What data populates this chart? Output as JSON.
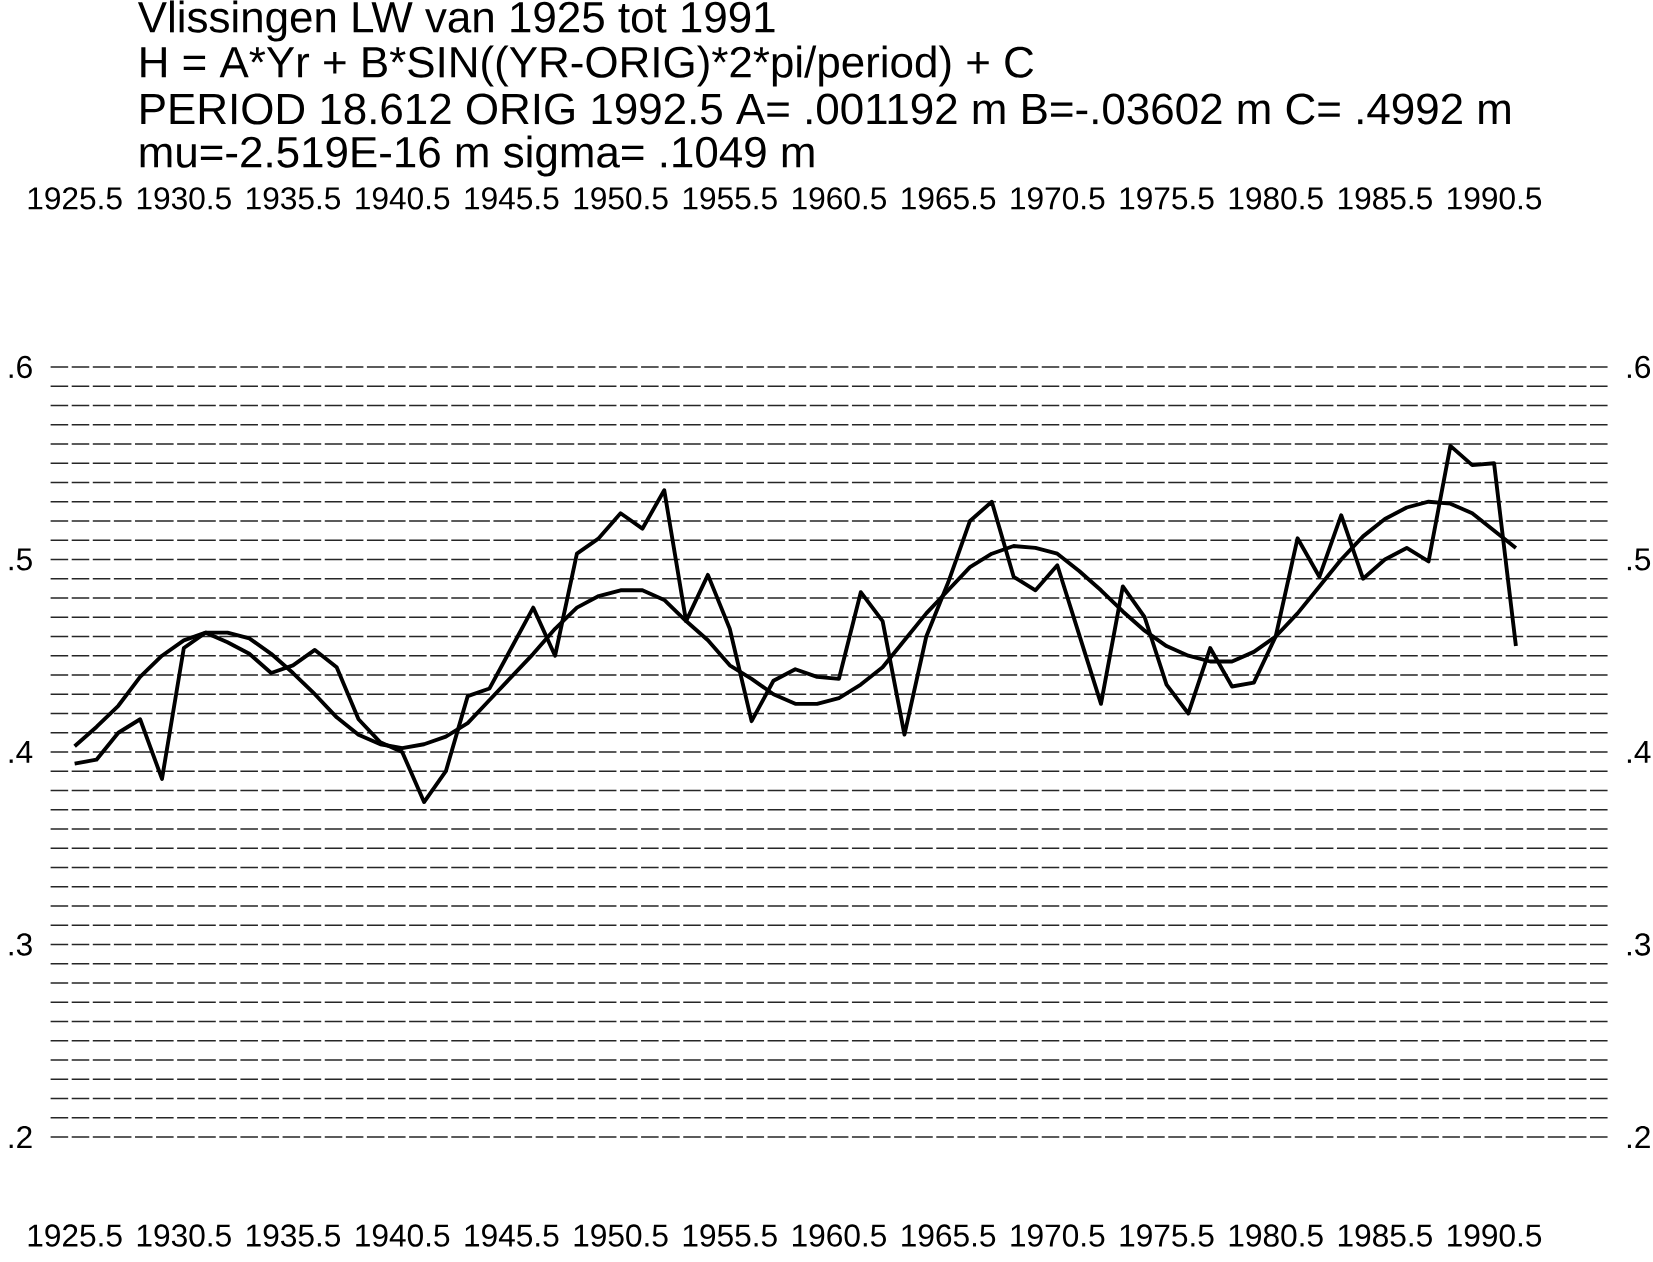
{
  "chart_data": {
    "type": "line",
    "title": "Vlissingen LW van 1925 tot 1991",
    "subtitle": "H = A*Yr + B*SIN((YR-ORIG)*2*pi/period) + C",
    "annotations": [
      "PERIOD 18.612 ORIG 1992.5 A= .001192 m B=-.03602 m C= .4992 m",
      "mu=-2.519E-16 m sigma= .1049 m"
    ],
    "series": [
      {
        "color": "#000000",
        "x": [
          1925.5,
          1926.5,
          1927.5,
          1928.5,
          1929.5,
          1930.5,
          1931.5,
          1932.5,
          1933.5,
          1934.5,
          1935.5,
          1936.5,
          1937.5,
          1938.5,
          1939.5,
          1940.5,
          1941.5,
          1942.5,
          1943.5,
          1944.5,
          1945.5,
          1946.5,
          1947.5,
          1948.5,
          1949.5,
          1950.5,
          1951.5,
          1952.5,
          1953.5,
          1954.5,
          1955.5,
          1956.5,
          1957.5,
          1958.5,
          1959.5,
          1960.5,
          1961.5,
          1962.5,
          1963.5,
          1964.5,
          1965.5,
          1966.5,
          1967.5,
          1968.5,
          1969.5,
          1970.5,
          1971.5,
          1972.5,
          1973.5,
          1974.5,
          1975.5,
          1976.5,
          1977.5,
          1978.5,
          1979.5,
          1980.5,
          1981.5,
          1982.5,
          1983.5,
          1984.5,
          1985.5,
          1986.5,
          1987.5,
          1988.5,
          1989.5,
          1990.5,
          1991.5
        ],
        "values": [
          0.394,
          0.396,
          0.41,
          0.417,
          0.386,
          0.454,
          0.462,
          0.457,
          0.451,
          0.441,
          0.445,
          0.453,
          0.444,
          0.417,
          0.405,
          0.4,
          0.374,
          0.39,
          0.429,
          0.433,
          0.454,
          0.475,
          0.45,
          0.503,
          0.511,
          0.524,
          0.516,
          0.536,
          0.468,
          0.492,
          0.464,
          0.416,
          0.437,
          0.443,
          0.439,
          0.438,
          0.483,
          0.468,
          0.409,
          0.46,
          0.488,
          0.52,
          0.53,
          0.491,
          0.484,
          0.497,
          0.461,
          0.425,
          0.486,
          0.47,
          0.435,
          0.42,
          0.454,
          0.434,
          0.436,
          0.46,
          0.511,
          0.491,
          0.523,
          0.49,
          0.5,
          0.506,
          0.499,
          0.559,
          0.549,
          0.55,
          0.455
        ]
      },
      {
        "color": "#000000",
        "x": [
          1925.5,
          1926.5,
          1927.5,
          1928.5,
          1929.5,
          1930.5,
          1931.5,
          1932.5,
          1933.5,
          1934.5,
          1935.5,
          1936.5,
          1937.5,
          1938.5,
          1939.5,
          1940.5,
          1941.5,
          1942.5,
          1943.5,
          1944.5,
          1945.5,
          1946.5,
          1947.5,
          1948.5,
          1949.5,
          1950.5,
          1951.5,
          1952.5,
          1953.5,
          1954.5,
          1955.5,
          1956.5,
          1957.5,
          1958.5,
          1959.5,
          1960.5,
          1961.5,
          1962.5,
          1963.5,
          1964.5,
          1965.5,
          1966.5,
          1967.5,
          1968.5,
          1969.5,
          1970.5,
          1971.5,
          1972.5,
          1973.5,
          1974.5,
          1975.5,
          1976.5,
          1977.5,
          1978.5,
          1979.5,
          1980.5,
          1981.5,
          1982.5,
          1983.5,
          1984.5,
          1985.5,
          1986.5,
          1987.5,
          1988.5,
          1989.5,
          1990.5,
          1991.5
        ],
        "values": [
          0.403,
          0.413,
          0.424,
          0.439,
          0.45,
          0.458,
          0.462,
          0.462,
          0.459,
          0.451,
          0.441,
          0.43,
          0.418,
          0.409,
          0.404,
          0.402,
          0.404,
          0.408,
          0.415,
          0.427,
          0.439,
          0.451,
          0.464,
          0.475,
          0.481,
          0.484,
          0.484,
          0.479,
          0.468,
          0.458,
          0.445,
          0.438,
          0.43,
          0.425,
          0.425,
          0.428,
          0.435,
          0.444,
          0.458,
          0.472,
          0.484,
          0.496,
          0.503,
          0.507,
          0.506,
          0.503,
          0.494,
          0.484,
          0.473,
          0.463,
          0.455,
          0.45,
          0.447,
          0.447,
          0.452,
          0.46,
          0.472,
          0.486,
          0.5,
          0.512,
          0.521,
          0.527,
          0.53,
          0.529,
          0.524,
          0.515,
          0.506
        ]
      }
    ],
    "xlim": [
      1924.4,
      1995.7
    ],
    "xticks": [
      {
        "value": 1925.5,
        "label": "1925.5"
      },
      {
        "value": 1930.5,
        "label": "1930.5"
      },
      {
        "value": 1935.5,
        "label": "1935.5"
      },
      {
        "value": 1940.5,
        "label": "1940.5"
      },
      {
        "value": 1945.5,
        "label": "1945.5"
      },
      {
        "value": 1950.5,
        "label": "1950.5"
      },
      {
        "value": 1955.5,
        "label": "1955.5"
      },
      {
        "value": 1960.5,
        "label": "1960.5"
      },
      {
        "value": 1965.5,
        "label": "1965.5"
      },
      {
        "value": 1970.5,
        "label": "1970.5"
      },
      {
        "value": 1975.5,
        "label": "1975.5"
      },
      {
        "value": 1980.5,
        "label": "1980.5"
      },
      {
        "value": 1985.5,
        "label": "1985.5"
      },
      {
        "value": 1990.5,
        "label": "1990.5"
      }
    ],
    "x2lim": [
      1924.4,
      1995.7
    ],
    "x2ticks": [
      {
        "value": 1925.5,
        "label": "1925.5"
      },
      {
        "value": 1930.5,
        "label": "1930.5"
      },
      {
        "value": 1935.5,
        "label": "1935.5"
      },
      {
        "value": 1940.5,
        "label": "1940.5"
      },
      {
        "value": 1945.5,
        "label": "1945.5"
      },
      {
        "value": 1950.5,
        "label": "1950.5"
      },
      {
        "value": 1955.5,
        "label": "1955.5"
      },
      {
        "value": 1960.5,
        "label": "1960.5"
      },
      {
        "value": 1965.5,
        "label": "1965.5"
      },
      {
        "value": 1970.5,
        "label": "1970.5"
      },
      {
        "value": 1975.5,
        "label": "1975.5"
      },
      {
        "value": 1980.5,
        "label": "1980.5"
      },
      {
        "value": 1985.5,
        "label": "1985.5"
      },
      {
        "value": 1990.5,
        "label": "1990.5"
      }
    ],
    "ylim": [
      0.2,
      0.6
    ],
    "yticks": [
      {
        "value": 0.2,
        "label": ".2"
      },
      {
        "value": 0.21,
        "label": null
      },
      {
        "value": 0.22,
        "label": null
      },
      {
        "value": 0.23,
        "label": null
      },
      {
        "value": 0.24,
        "label": null
      },
      {
        "value": 0.25,
        "label": null
      },
      {
        "value": 0.26,
        "label": null
      },
      {
        "value": 0.27,
        "label": null
      },
      {
        "value": 0.28,
        "label": null
      },
      {
        "value": 0.29,
        "label": null
      },
      {
        "value": 0.3,
        "label": ".3"
      },
      {
        "value": 0.31,
        "label": null
      },
      {
        "value": 0.32,
        "label": null
      },
      {
        "value": 0.33,
        "label": null
      },
      {
        "value": 0.34,
        "label": null
      },
      {
        "value": 0.35,
        "label": null
      },
      {
        "value": 0.36,
        "label": null
      },
      {
        "value": 0.37,
        "label": null
      },
      {
        "value": 0.38,
        "label": null
      },
      {
        "value": 0.39,
        "label": null
      },
      {
        "value": 0.4,
        "label": ".4"
      },
      {
        "value": 0.41,
        "label": null
      },
      {
        "value": 0.42,
        "label": null
      },
      {
        "value": 0.43,
        "label": null
      },
      {
        "value": 0.44,
        "label": null
      },
      {
        "value": 0.45,
        "label": null
      },
      {
        "value": 0.46,
        "label": null
      },
      {
        "value": 0.47,
        "label": null
      },
      {
        "value": 0.48,
        "label": null
      },
      {
        "value": 0.49,
        "label": null
      },
      {
        "value": 0.5,
        "label": ".5"
      },
      {
        "value": 0.51,
        "label": null
      },
      {
        "value": 0.52,
        "label": null
      },
      {
        "value": 0.53,
        "label": null
      },
      {
        "value": 0.54,
        "label": null
      },
      {
        "value": 0.55,
        "label": null
      },
      {
        "value": 0.56,
        "label": null
      },
      {
        "value": 0.57,
        "label": null
      },
      {
        "value": 0.58,
        "label": null
      },
      {
        "value": 0.59,
        "label": null
      },
      {
        "value": 0.6,
        "label": ".6"
      }
    ],
    "y2lim": [
      0.2,
      0.6
    ],
    "y2ticks": [
      {
        "value": 0.2,
        "label": ".2"
      },
      {
        "value": 0.3,
        "label": ".3"
      },
      {
        "value": 0.4,
        "label": ".4"
      },
      {
        "value": 0.5,
        "label": ".5"
      },
      {
        "value": 0.6,
        "label": ".6"
      }
    ],
    "grid": "y"
  }
}
